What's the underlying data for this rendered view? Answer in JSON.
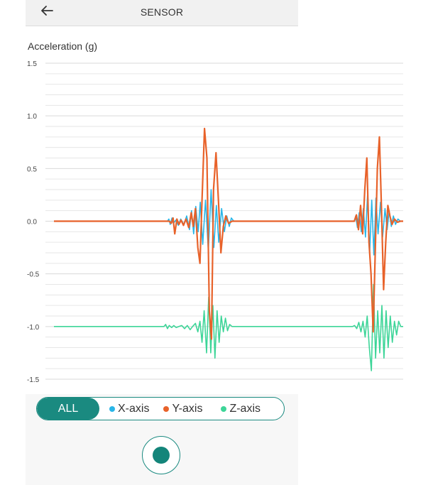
{
  "header": {
    "title": "SENSOR",
    "back_icon": "arrow-left-icon"
  },
  "chart_data": {
    "type": "line",
    "title": "Acceleration (g)",
    "xlabel": "",
    "ylabel": "Acceleration (g)",
    "ylim": [
      -1.5,
      1.5
    ],
    "yticks": [
      "1.5",
      "1.0",
      "0.5",
      "0.0",
      "-0.5",
      "-1.0",
      "-1.5"
    ],
    "ytick_values": [
      1.5,
      1.0,
      0.5,
      0.0,
      -0.5,
      -1.0,
      -1.5
    ],
    "grid": true,
    "x_range": [
      0,
      100
    ],
    "series": [
      {
        "name": "X-axis",
        "color": "#29b6e8",
        "points": [
          [
            0,
            0
          ],
          [
            32.5,
            0
          ],
          [
            32.9,
            0.02
          ],
          [
            33.3,
            -0.03
          ],
          [
            33.8,
            0.03
          ],
          [
            34.2,
            -0.02
          ],
          [
            34.9,
            0.01
          ],
          [
            35.6,
            -0.04
          ],
          [
            36.3,
            0.02
          ],
          [
            37.2,
            -0.03
          ],
          [
            38,
            0.05
          ],
          [
            38.8,
            -0.08
          ],
          [
            39.4,
            0.1
          ],
          [
            40,
            -0.12
          ],
          [
            40.6,
            0.14
          ],
          [
            41.3,
            -0.1
          ],
          [
            41.9,
            0.18
          ],
          [
            42.6,
            -0.22
          ],
          [
            43.4,
            0.2
          ],
          [
            44.2,
            -0.28
          ],
          [
            45,
            0.3
          ],
          [
            45.8,
            -0.25
          ],
          [
            46.5,
            0.15
          ],
          [
            47.2,
            -0.2
          ],
          [
            48,
            0.12
          ],
          [
            48.8,
            -0.1
          ],
          [
            49.5,
            0.05
          ],
          [
            50.2,
            -0.05
          ],
          [
            50.8,
            0.03
          ],
          [
            51.5,
            0
          ],
          [
            86,
            0
          ],
          [
            86.4,
            0.05
          ],
          [
            86.9,
            -0.06
          ],
          [
            87.4,
            0.08
          ],
          [
            88,
            -0.1
          ],
          [
            88.6,
            0.12
          ],
          [
            89.2,
            -0.15
          ],
          [
            89.8,
            0.25
          ],
          [
            90.4,
            -0.3
          ],
          [
            91,
            0.2
          ],
          [
            91.6,
            -0.32
          ],
          [
            92.2,
            0.22
          ],
          [
            92.8,
            -0.12
          ],
          [
            93.5,
            0.18
          ],
          [
            94.1,
            -0.15
          ],
          [
            94.8,
            0.12
          ],
          [
            95.4,
            -0.08
          ],
          [
            96,
            0.1
          ],
          [
            96.6,
            -0.05
          ],
          [
            97.2,
            0.05
          ],
          [
            97.8,
            -0.03
          ],
          [
            98.5,
            0.02
          ],
          [
            99.2,
            0
          ],
          [
            100,
            0
          ]
        ]
      },
      {
        "name": "Y-axis",
        "color": "#e8622a",
        "points": [
          [
            0,
            0
          ],
          [
            33,
            0
          ],
          [
            33.6,
            -0.02
          ],
          [
            34.1,
            0.03
          ],
          [
            34.6,
            -0.12
          ],
          [
            35.2,
            0.02
          ],
          [
            35.8,
            -0.03
          ],
          [
            36.4,
            0.01
          ],
          [
            37.1,
            -0.04
          ],
          [
            37.8,
            0.02
          ],
          [
            38.6,
            -0.06
          ],
          [
            39.3,
            0.08
          ],
          [
            39.9,
            -0.05
          ],
          [
            40.5,
            0.12
          ],
          [
            41.2,
            -0.25
          ],
          [
            41.8,
            -0.4
          ],
          [
            42.4,
            0.2
          ],
          [
            43.1,
            0.88
          ],
          [
            43.8,
            0.6
          ],
          [
            44.5,
            -0.85
          ],
          [
            45.1,
            -1.12
          ],
          [
            45.7,
            0.3
          ],
          [
            46.4,
            0.65
          ],
          [
            47.1,
            0.2
          ],
          [
            47.8,
            -0.3
          ],
          [
            48.5,
            -0.05
          ],
          [
            49.2,
            0.05
          ],
          [
            50,
            -0.02
          ],
          [
            51,
            0
          ],
          [
            86,
            0
          ],
          [
            86.6,
            0.06
          ],
          [
            87.2,
            -0.08
          ],
          [
            87.8,
            0.15
          ],
          [
            88.4,
            -0.12
          ],
          [
            89,
            0.3
          ],
          [
            89.6,
            0.6
          ],
          [
            90.2,
            -0.2
          ],
          [
            90.8,
            -0.5
          ],
          [
            91.4,
            -1.05
          ],
          [
            92,
            -0.3
          ],
          [
            92.6,
            0.5
          ],
          [
            93.2,
            0.8
          ],
          [
            93.8,
            0.1
          ],
          [
            94.4,
            -0.65
          ],
          [
            95,
            -0.2
          ],
          [
            95.6,
            0.15
          ],
          [
            96.2,
            0.05
          ],
          [
            96.8,
            -0.03
          ],
          [
            97.5,
            0.02
          ],
          [
            98.4,
            -0.01
          ],
          [
            99.2,
            0
          ],
          [
            100,
            0
          ]
        ]
      },
      {
        "name": "Z-axis",
        "color": "#3dd598",
        "points": [
          [
            0,
            -1.0
          ],
          [
            31.5,
            -1.0
          ],
          [
            32,
            -0.98
          ],
          [
            32.5,
            -1.02
          ],
          [
            33,
            -0.99
          ],
          [
            33.7,
            -1.01
          ],
          [
            34.3,
            -0.99
          ],
          [
            35,
            -1.01
          ],
          [
            35.8,
            -1.0
          ],
          [
            36.6,
            -0.99
          ],
          [
            37.4,
            -1.02
          ],
          [
            38.2,
            -0.99
          ],
          [
            39,
            -1.03
          ],
          [
            39.7,
            -1.0
          ],
          [
            40.5,
            -0.97
          ],
          [
            41.2,
            -1.05
          ],
          [
            41.8,
            -0.95
          ],
          [
            42.4,
            -1.15
          ],
          [
            43,
            -0.85
          ],
          [
            43.7,
            -1.25
          ],
          [
            44.3,
            -0.72
          ],
          [
            44.9,
            -1.25
          ],
          [
            45.5,
            -0.8
          ],
          [
            46.1,
            -1.3
          ],
          [
            46.7,
            -0.85
          ],
          [
            47.3,
            -1.15
          ],
          [
            47.9,
            -0.9
          ],
          [
            48.5,
            -1.05
          ],
          [
            49.1,
            -0.92
          ],
          [
            49.7,
            -1.04
          ],
          [
            50.3,
            -0.98
          ],
          [
            51,
            -1.0
          ],
          [
            85.5,
            -1.0
          ],
          [
            86.1,
            -0.99
          ],
          [
            86.7,
            -1.02
          ],
          [
            87.3,
            -0.96
          ],
          [
            87.9,
            -1.05
          ],
          [
            88.5,
            -0.95
          ],
          [
            89.1,
            -1.1
          ],
          [
            89.7,
            -0.9
          ],
          [
            90.3,
            -1.2
          ],
          [
            90.9,
            -1.42
          ],
          [
            91.5,
            -0.6
          ],
          [
            92.1,
            -1.3
          ],
          [
            92.7,
            -0.85
          ],
          [
            93.3,
            -1.25
          ],
          [
            93.9,
            -0.8
          ],
          [
            94.5,
            -1.3
          ],
          [
            95.1,
            -0.85
          ],
          [
            95.7,
            -1.2
          ],
          [
            96.3,
            -0.9
          ],
          [
            96.9,
            -1.15
          ],
          [
            97.5,
            -0.95
          ],
          [
            98.1,
            -1.08
          ],
          [
            98.7,
            -0.95
          ],
          [
            99.3,
            -1.0
          ],
          [
            100,
            -1.0
          ]
        ]
      }
    ]
  },
  "legend": {
    "all_label": "ALL",
    "items": [
      {
        "label": "X-axis",
        "color": "#29b6e8"
      },
      {
        "label": "Y-axis",
        "color": "#e8622a"
      },
      {
        "label": "Z-axis",
        "color": "#3dd598"
      }
    ]
  },
  "record": {
    "icon": "record-icon"
  }
}
